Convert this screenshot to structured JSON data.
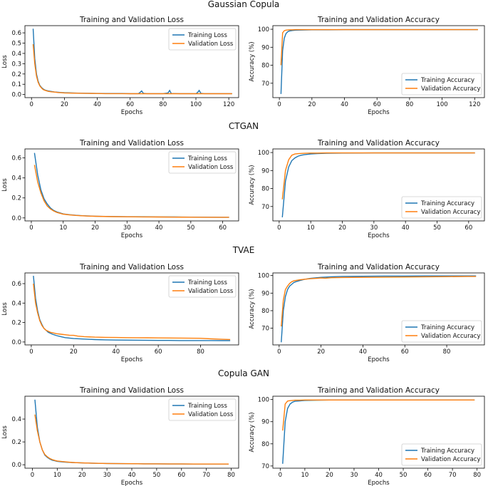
{
  "figure": {
    "row_titles": [
      "Gaussian Copula",
      "CTGAN",
      "TVAE",
      "Copula GAN"
    ]
  },
  "colors": {
    "training": "#1f77b4",
    "validation": "#ff7f0e",
    "spine": "#000000"
  },
  "chart_data": [
    {
      "type": "line",
      "title": "Training and Validation Loss",
      "xlabel": "Epochs",
      "ylabel": "Loss",
      "xlim": [
        -4,
        126
      ],
      "ylim": [
        -0.03,
        0.67
      ],
      "xticks": [
        0,
        20,
        40,
        60,
        80,
        100,
        120
      ],
      "yticks": [
        0.0,
        0.1,
        0.2,
        0.3,
        0.4,
        0.5,
        0.6
      ],
      "ytick_format": 1,
      "legend": "top-right",
      "series": [
        {
          "name": "Training Loss",
          "x": [
            1,
            2,
            3,
            4,
            5,
            6,
            7,
            8,
            9,
            10,
            12,
            14,
            16,
            18,
            20,
            25,
            30,
            35,
            40,
            45,
            50,
            55,
            60,
            65,
            66,
            67,
            68,
            70,
            75,
            80,
            83,
            84,
            85,
            90,
            95,
            100,
            101,
            102,
            103,
            105,
            110,
            115,
            120,
            122
          ],
          "y": [
            0.64,
            0.35,
            0.2,
            0.13,
            0.09,
            0.07,
            0.055,
            0.045,
            0.04,
            0.035,
            0.03,
            0.025,
            0.022,
            0.02,
            0.018,
            0.015,
            0.013,
            0.012,
            0.011,
            0.01,
            0.01,
            0.01,
            0.009,
            0.009,
            0.02,
            0.035,
            0.012,
            0.009,
            0.009,
            0.009,
            0.015,
            0.04,
            0.01,
            0.009,
            0.009,
            0.009,
            0.02,
            0.04,
            0.012,
            0.009,
            0.009,
            0.009,
            0.009,
            0.009
          ]
        },
        {
          "name": "Validation Loss",
          "x": [
            1,
            2,
            3,
            4,
            5,
            6,
            7,
            8,
            9,
            10,
            12,
            14,
            16,
            18,
            20,
            25,
            30,
            35,
            40,
            45,
            50,
            55,
            60,
            65,
            70,
            75,
            80,
            85,
            90,
            95,
            100,
            105,
            110,
            115,
            120,
            122
          ],
          "y": [
            0.49,
            0.3,
            0.18,
            0.12,
            0.085,
            0.065,
            0.05,
            0.042,
            0.037,
            0.032,
            0.027,
            0.024,
            0.02,
            0.018,
            0.016,
            0.014,
            0.012,
            0.011,
            0.01,
            0.009,
            0.009,
            0.009,
            0.008,
            0.008,
            0.008,
            0.008,
            0.008,
            0.008,
            0.008,
            0.008,
            0.008,
            0.008,
            0.008,
            0.008,
            0.008,
            0.008
          ]
        }
      ]
    },
    {
      "type": "line",
      "title": "Training and Validation Accuracy",
      "xlabel": "Epochs",
      "ylabel": "Accuracy (%)",
      "xlim": [
        -4,
        126
      ],
      "ylim": [
        62,
        102
      ],
      "xticks": [
        0,
        20,
        40,
        60,
        80,
        100,
        120
      ],
      "yticks": [
        70,
        80,
        90,
        100
      ],
      "ytick_format": 0,
      "legend": "bottom-right",
      "series": [
        {
          "name": "Training Accuracy",
          "x": [
            1,
            2,
            3,
            4,
            5,
            6,
            8,
            10,
            15,
            20,
            30,
            40,
            50,
            60,
            70,
            80,
            90,
            100,
            110,
            120,
            122
          ],
          "y": [
            64,
            88,
            95,
            97.5,
            98.5,
            99,
            99.3,
            99.5,
            99.6,
            99.7,
            99.7,
            99.8,
            99.8,
            99.8,
            99.8,
            99.8,
            99.8,
            99.8,
            99.8,
            99.8,
            99.8
          ]
        },
        {
          "name": "Validation Accuracy",
          "x": [
            1,
            2,
            3,
            4,
            5,
            6,
            8,
            10,
            15,
            20,
            30,
            40,
            50,
            60,
            70,
            80,
            90,
            100,
            110,
            120,
            122
          ],
          "y": [
            80,
            98,
            99.2,
            99.5,
            99.6,
            99.7,
            99.7,
            99.8,
            99.8,
            99.8,
            99.8,
            99.8,
            99.8,
            99.8,
            99.8,
            99.8,
            99.8,
            99.8,
            99.8,
            99.8,
            99.8
          ]
        }
      ]
    },
    {
      "type": "line",
      "title": "Training and Validation Loss",
      "xlabel": "Epochs",
      "ylabel": "Loss",
      "xlim": [
        -2,
        65
      ],
      "ylim": [
        -0.03,
        0.69
      ],
      "xticks": [
        0,
        10,
        20,
        30,
        40,
        50,
        60
      ],
      "yticks": [
        0.0,
        0.2,
        0.4,
        0.6
      ],
      "ytick_format": 1,
      "legend": "top-right",
      "series": [
        {
          "name": "Training Loss",
          "x": [
            1,
            2,
            3,
            4,
            5,
            6,
            7,
            8,
            9,
            10,
            12,
            14,
            16,
            18,
            20,
            25,
            30,
            35,
            40,
            45,
            50,
            55,
            60,
            62
          ],
          "y": [
            0.65,
            0.43,
            0.28,
            0.19,
            0.14,
            0.1,
            0.075,
            0.06,
            0.05,
            0.04,
            0.032,
            0.026,
            0.022,
            0.019,
            0.017,
            0.014,
            0.012,
            0.011,
            0.01,
            0.009,
            0.008,
            0.007,
            0.006,
            0.006
          ]
        },
        {
          "name": "Validation Loss",
          "x": [
            1,
            2,
            3,
            4,
            5,
            6,
            7,
            8,
            9,
            10,
            12,
            14,
            16,
            18,
            20,
            25,
            30,
            35,
            40,
            45,
            50,
            55,
            60,
            62
          ],
          "y": [
            0.53,
            0.36,
            0.25,
            0.17,
            0.12,
            0.09,
            0.07,
            0.055,
            0.046,
            0.038,
            0.03,
            0.025,
            0.021,
            0.018,
            0.016,
            0.013,
            0.011,
            0.01,
            0.009,
            0.008,
            0.007,
            0.006,
            0.006,
            0.006
          ]
        }
      ]
    },
    {
      "type": "line",
      "title": "Training and Validation Accuracy",
      "xlabel": "Epochs",
      "ylabel": "Accuracy (%)",
      "xlim": [
        -2,
        65
      ],
      "ylim": [
        62,
        102
      ],
      "xticks": [
        0,
        10,
        20,
        30,
        40,
        50,
        60
      ],
      "yticks": [
        70,
        80,
        90,
        100
      ],
      "ytick_format": 0,
      "legend": "bottom-right",
      "series": [
        {
          "name": "Training Accuracy",
          "x": [
            1,
            2,
            3,
            4,
            5,
            6,
            7,
            8,
            10,
            12,
            15,
            20,
            30,
            40,
            50,
            60,
            62
          ],
          "y": [
            64,
            84,
            92,
            95.5,
            97,
            98,
            98.5,
            98.8,
            99.2,
            99.4,
            99.6,
            99.7,
            99.8,
            99.8,
            99.8,
            99.8,
            99.8
          ]
        },
        {
          "name": "Validation Accuracy",
          "x": [
            1,
            2,
            3,
            4,
            5,
            6,
            7,
            8,
            10,
            12,
            15,
            20,
            30,
            40,
            50,
            60,
            62
          ],
          "y": [
            74,
            90,
            96,
            98.5,
            99.2,
            99.4,
            99.5,
            99.6,
            99.7,
            99.7,
            99.8,
            99.8,
            99.8,
            99.8,
            99.8,
            99.8,
            99.8
          ]
        }
      ]
    },
    {
      "type": "line",
      "title": "Training and Validation Loss",
      "xlabel": "Epochs",
      "ylabel": "Loss",
      "xlim": [
        -3,
        98
      ],
      "ylim": [
        -0.03,
        0.71
      ],
      "xticks": [
        0,
        20,
        40,
        60,
        80
      ],
      "yticks": [
        0.0,
        0.2,
        0.4,
        0.6
      ],
      "ytick_format": 1,
      "legend": "top-right",
      "series": [
        {
          "name": "Training Loss",
          "x": [
            1,
            2,
            3,
            4,
            5,
            6,
            7,
            8,
            9,
            10,
            12,
            14,
            16,
            18,
            20,
            25,
            30,
            35,
            40,
            45,
            50,
            55,
            60,
            65,
            70,
            75,
            80,
            85,
            90,
            94
          ],
          "y": [
            0.68,
            0.45,
            0.32,
            0.23,
            0.18,
            0.14,
            0.12,
            0.1,
            0.09,
            0.08,
            0.065,
            0.055,
            0.045,
            0.04,
            0.035,
            0.03,
            0.025,
            0.022,
            0.02,
            0.019,
            0.018,
            0.017,
            0.016,
            0.016,
            0.015,
            0.015,
            0.015,
            0.015,
            0.014,
            0.014
          ]
        },
        {
          "name": "Validation Loss",
          "x": [
            1,
            2,
            3,
            4,
            5,
            6,
            7,
            8,
            9,
            10,
            12,
            14,
            16,
            18,
            20,
            22,
            25,
            30,
            35,
            40,
            45,
            50,
            55,
            60,
            65,
            70,
            75,
            80,
            85,
            90,
            94
          ],
          "y": [
            0.6,
            0.4,
            0.3,
            0.22,
            0.17,
            0.14,
            0.12,
            0.11,
            0.1,
            0.095,
            0.085,
            0.08,
            0.075,
            0.07,
            0.068,
            0.06,
            0.055,
            0.05,
            0.048,
            0.046,
            0.045,
            0.044,
            0.043,
            0.042,
            0.041,
            0.04,
            0.039,
            0.038,
            0.032,
            0.028,
            0.026
          ]
        }
      ]
    },
    {
      "type": "line",
      "title": "Training and Validation Accuracy",
      "xlabel": "Epochs",
      "ylabel": "Accuracy (%)",
      "xlim": [
        -3,
        98
      ],
      "ylim": [
        60.5,
        101.5
      ],
      "xticks": [
        0,
        20,
        40,
        60,
        80
      ],
      "yticks": [
        70,
        80,
        90,
        100
      ],
      "ytick_format": 0,
      "legend": "bottom-right",
      "series": [
        {
          "name": "Training Accuracy",
          "x": [
            1,
            2,
            3,
            4,
            5,
            6,
            7,
            8,
            10,
            12,
            15,
            20,
            25,
            30,
            40,
            50,
            60,
            70,
            80,
            90,
            94
          ],
          "y": [
            62,
            80,
            88,
            92,
            94,
            95,
            96,
            96.5,
            97.2,
            97.8,
            98.4,
            99,
            99.3,
            99.5,
            99.6,
            99.7,
            99.7,
            99.8,
            99.8,
            99.8,
            99.8
          ]
        },
        {
          "name": "Validation Accuracy",
          "x": [
            1,
            2,
            3,
            4,
            5,
            6,
            7,
            8,
            10,
            12,
            15,
            18,
            20,
            22,
            25,
            30,
            40,
            50,
            60,
            70,
            80,
            90,
            94
          ],
          "y": [
            71,
            86,
            92,
            94,
            95.5,
            96.5,
            97,
            97.2,
            97.6,
            97.9,
            98.2,
            98.4,
            98.6,
            98.5,
            98.8,
            98.9,
            99,
            99.1,
            99.2,
            99.3,
            99.4,
            99.5,
            99.5
          ]
        }
      ]
    },
    {
      "type": "line",
      "title": "Training and Validation Loss",
      "xlabel": "Epochs",
      "ylabel": "Loss",
      "xlim": [
        -3,
        83
      ],
      "ylim": [
        -0.03,
        0.6
      ],
      "xticks": [
        0,
        10,
        20,
        30,
        40,
        50,
        60,
        70,
        80
      ],
      "yticks": [
        0.0,
        0.2,
        0.4
      ],
      "ytick_format": 1,
      "legend": "top-right",
      "series": [
        {
          "name": "Training Loss",
          "x": [
            1,
            2,
            3,
            4,
            5,
            6,
            7,
            8,
            9,
            10,
            12,
            14,
            16,
            18,
            20,
            25,
            30,
            35,
            40,
            45,
            50,
            55,
            60,
            65,
            70,
            75,
            79
          ],
          "y": [
            0.57,
            0.33,
            0.2,
            0.13,
            0.085,
            0.065,
            0.05,
            0.04,
            0.035,
            0.03,
            0.025,
            0.022,
            0.02,
            0.018,
            0.016,
            0.013,
            0.011,
            0.01,
            0.009,
            0.008,
            0.008,
            0.007,
            0.007,
            0.006,
            0.006,
            0.006,
            0.006
          ]
        },
        {
          "name": "Validation Loss",
          "x": [
            1,
            2,
            3,
            4,
            5,
            6,
            7,
            8,
            9,
            10,
            12,
            14,
            16,
            18,
            20,
            25,
            30,
            35,
            40,
            45,
            50,
            55,
            60,
            65,
            70,
            75,
            79
          ],
          "y": [
            0.44,
            0.3,
            0.2,
            0.13,
            0.09,
            0.07,
            0.055,
            0.045,
            0.038,
            0.033,
            0.028,
            0.024,
            0.02,
            0.018,
            0.016,
            0.013,
            0.011,
            0.01,
            0.009,
            0.008,
            0.008,
            0.007,
            0.007,
            0.006,
            0.006,
            0.006,
            0.006
          ]
        }
      ]
    },
    {
      "type": "line",
      "title": "Training and Validation Accuracy",
      "xlabel": "Epochs",
      "ylabel": "Accuracy (%)",
      "xlim": [
        -3,
        83
      ],
      "ylim": [
        69,
        101.5
      ],
      "xticks": [
        0,
        10,
        20,
        30,
        40,
        50,
        60,
        70,
        80
      ],
      "yticks": [
        70,
        80,
        90,
        100
      ],
      "ytick_format": 0,
      "legend": "bottom-right",
      "series": [
        {
          "name": "Training Accuracy",
          "x": [
            1,
            2,
            3,
            4,
            5,
            6,
            8,
            10,
            15,
            20,
            30,
            40,
            50,
            60,
            70,
            79
          ],
          "y": [
            71,
            90,
            96,
            98,
            98.8,
            99.2,
            99.4,
            99.6,
            99.7,
            99.8,
            99.8,
            99.8,
            99.8,
            99.8,
            99.8,
            99.8
          ]
        },
        {
          "name": "Validation Accuracy",
          "x": [
            1,
            2,
            3,
            4,
            5,
            6,
            8,
            10,
            15,
            20,
            30,
            40,
            50,
            60,
            70,
            79
          ],
          "y": [
            86,
            98,
            99.3,
            99.5,
            99.6,
            99.7,
            99.7,
            99.8,
            99.8,
            99.8,
            99.8,
            99.8,
            99.8,
            99.8,
            99.8,
            99.8
          ]
        }
      ]
    }
  ]
}
